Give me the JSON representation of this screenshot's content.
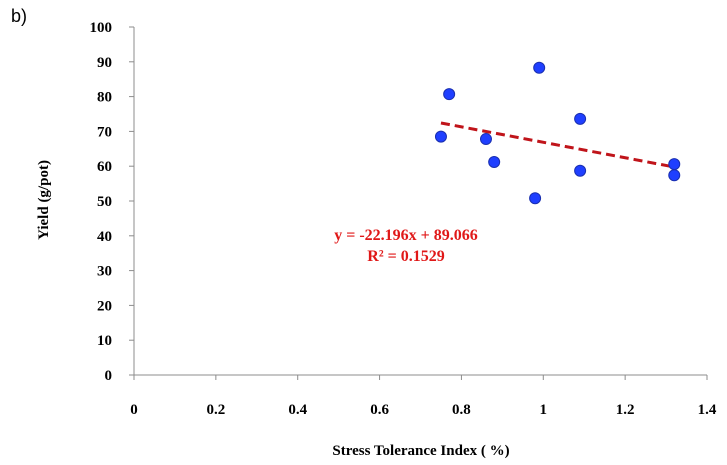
{
  "panel_label": "b)",
  "colors": {
    "axis": "#8c8c8c",
    "point_fill": "#1f3fff",
    "point_stroke": "#1a2fb0",
    "trendline": "#c0141a",
    "equation": "#e01818"
  },
  "chart_data": {
    "type": "scatter",
    "xlabel": "Stress Tolerance Index ( %)",
    "ylabel": "Yield (g/pot)",
    "xlim": [
      0,
      1.4
    ],
    "ylim": [
      0,
      100
    ],
    "x_ticks": [
      "0",
      "0.2",
      "0.4",
      "0.6",
      "0.8",
      "1",
      "1.2",
      "1.4"
    ],
    "y_ticks": [
      "0",
      "10",
      "20",
      "30",
      "40",
      "50",
      "60",
      "70",
      "80",
      "90",
      "100"
    ],
    "grid": false,
    "legend": "none",
    "series": [
      {
        "points": [
          {
            "x": 0.75,
            "y": 68.5
          },
          {
            "x": 0.77,
            "y": 80.7
          },
          {
            "x": 0.86,
            "y": 67.8
          },
          {
            "x": 0.88,
            "y": 61.2
          },
          {
            "x": 0.98,
            "y": 50.8
          },
          {
            "x": 0.99,
            "y": 88.3
          },
          {
            "x": 1.09,
            "y": 73.6
          },
          {
            "x": 1.09,
            "y": 58.7
          },
          {
            "x": 1.32,
            "y": 60.6
          },
          {
            "x": 1.32,
            "y": 57.4
          }
        ]
      }
    ],
    "trendline": {
      "type": "linear",
      "slope": -22.196,
      "intercept": 89.066,
      "x_range": [
        0.75,
        1.32
      ],
      "style": "dashed"
    },
    "annotations": {
      "equation": "y = -22.196x + 89.066",
      "r_squared": "R² = 0.1529"
    }
  }
}
